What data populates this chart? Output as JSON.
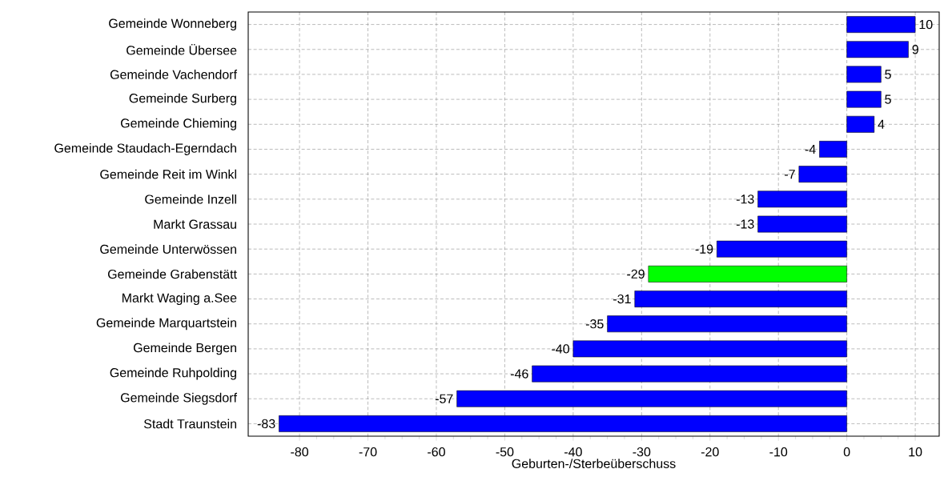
{
  "chart_data": {
    "type": "bar",
    "orientation": "horizontal",
    "xlabel": "Geburten-/Sterbeüberschuss",
    "categories": [
      "Gemeinde Wonneberg",
      "Gemeinde Übersee",
      "Gemeinde Vachendorf",
      "Gemeinde Surberg",
      "Gemeinde Chieming",
      "Gemeinde Staudach-Egerndach",
      "Gemeinde Reit im Winkl",
      "Gemeinde Inzell",
      "Markt Grassau",
      "Gemeinde Unterwössen",
      "Gemeinde Grabenstätt",
      "Markt Waging a.See",
      "Gemeinde Marquartstein",
      "Gemeinde Bergen",
      "Gemeinde Ruhpolding",
      "Gemeinde Siegsdorf",
      "Stadt Traunstein"
    ],
    "values": [
      10,
      9,
      5,
      5,
      4,
      -4,
      -7,
      -13,
      -13,
      -19,
      -29,
      -31,
      -35,
      -40,
      -46,
      -57,
      -83
    ],
    "colors": [
      "#0000ff",
      "#0000ff",
      "#0000ff",
      "#0000ff",
      "#0000ff",
      "#0000ff",
      "#0000ff",
      "#0000ff",
      "#0000ff",
      "#0000ff",
      "#00ff00",
      "#0000ff",
      "#0000ff",
      "#0000ff",
      "#0000ff",
      "#0000ff",
      "#0000ff"
    ],
    "xlim": [
      -87.5,
      13.5
    ],
    "xticks": [
      -80,
      -70,
      -60,
      -50,
      -40,
      -30,
      -20,
      -10,
      0,
      10
    ],
    "grid": true,
    "data_labels": true
  }
}
